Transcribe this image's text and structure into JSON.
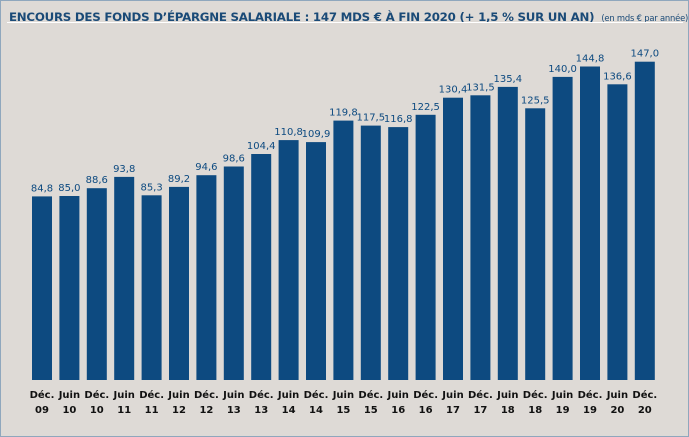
{
  "header": {
    "title": "ENCOURS DES FONDS D’ÉPARGNE SALARIALE : 147 MDS € À FIN 2020 (+ 1,5 % SUR UN AN)",
    "unit_note": "(en mds € par année)"
  },
  "colors": {
    "bar": "#0d4a80",
    "background": "#dedad6",
    "value_text": "#0d4a80"
  },
  "chart_data": {
    "type": "bar",
    "title": "ENCOURS DES FONDS D’ÉPARGNE SALARIALE : 147 MDS € À FIN 2020 (+ 1,5 % SUR UN AN)",
    "ylabel": "",
    "xlabel": "",
    "unit": "(en mds € par année)",
    "grid": false,
    "ylim": [
      0,
      155
    ],
    "categories": [
      [
        "Déc.",
        "09"
      ],
      [
        "Juin",
        "10"
      ],
      [
        "Déc.",
        "10"
      ],
      [
        "Juin",
        "11"
      ],
      [
        "Déc.",
        "11"
      ],
      [
        "Juin",
        "12"
      ],
      [
        "Déc.",
        "12"
      ],
      [
        "Juin",
        "13"
      ],
      [
        "Déc.",
        "13"
      ],
      [
        "Juin",
        "14"
      ],
      [
        "Déc.",
        "14"
      ],
      [
        "Juin",
        "15"
      ],
      [
        "Déc.",
        "15"
      ],
      [
        "Juin",
        "16"
      ],
      [
        "Déc.",
        "16"
      ],
      [
        "Juin",
        "17"
      ],
      [
        "Déc.",
        "17"
      ],
      [
        "Juin",
        "18"
      ],
      [
        "Déc.",
        "18"
      ],
      [
        "Juin",
        "19"
      ],
      [
        "Déc.",
        "19"
      ],
      [
        "Juin",
        "20"
      ],
      [
        "Déc.",
        "20"
      ]
    ],
    "values": [
      84.8,
      85.0,
      88.6,
      93.8,
      85.3,
      89.2,
      94.6,
      98.6,
      104.4,
      110.8,
      109.9,
      119.8,
      117.5,
      116.8,
      122.5,
      130.4,
      131.5,
      135.4,
      125.5,
      140.0,
      144.8,
      136.6,
      147.0
    ],
    "value_labels": [
      "84,8",
      "85,0",
      "88,6",
      "93,8",
      "85,3",
      "89,2",
      "94,6",
      "98,6",
      "104,4",
      "110,8",
      "109,9",
      "119,8",
      "117,5",
      "116,8",
      "122,5",
      "130,4",
      "131,5",
      "135,4",
      "125,5",
      "140,0",
      "144,8",
      "136,6",
      "147,0"
    ]
  }
}
